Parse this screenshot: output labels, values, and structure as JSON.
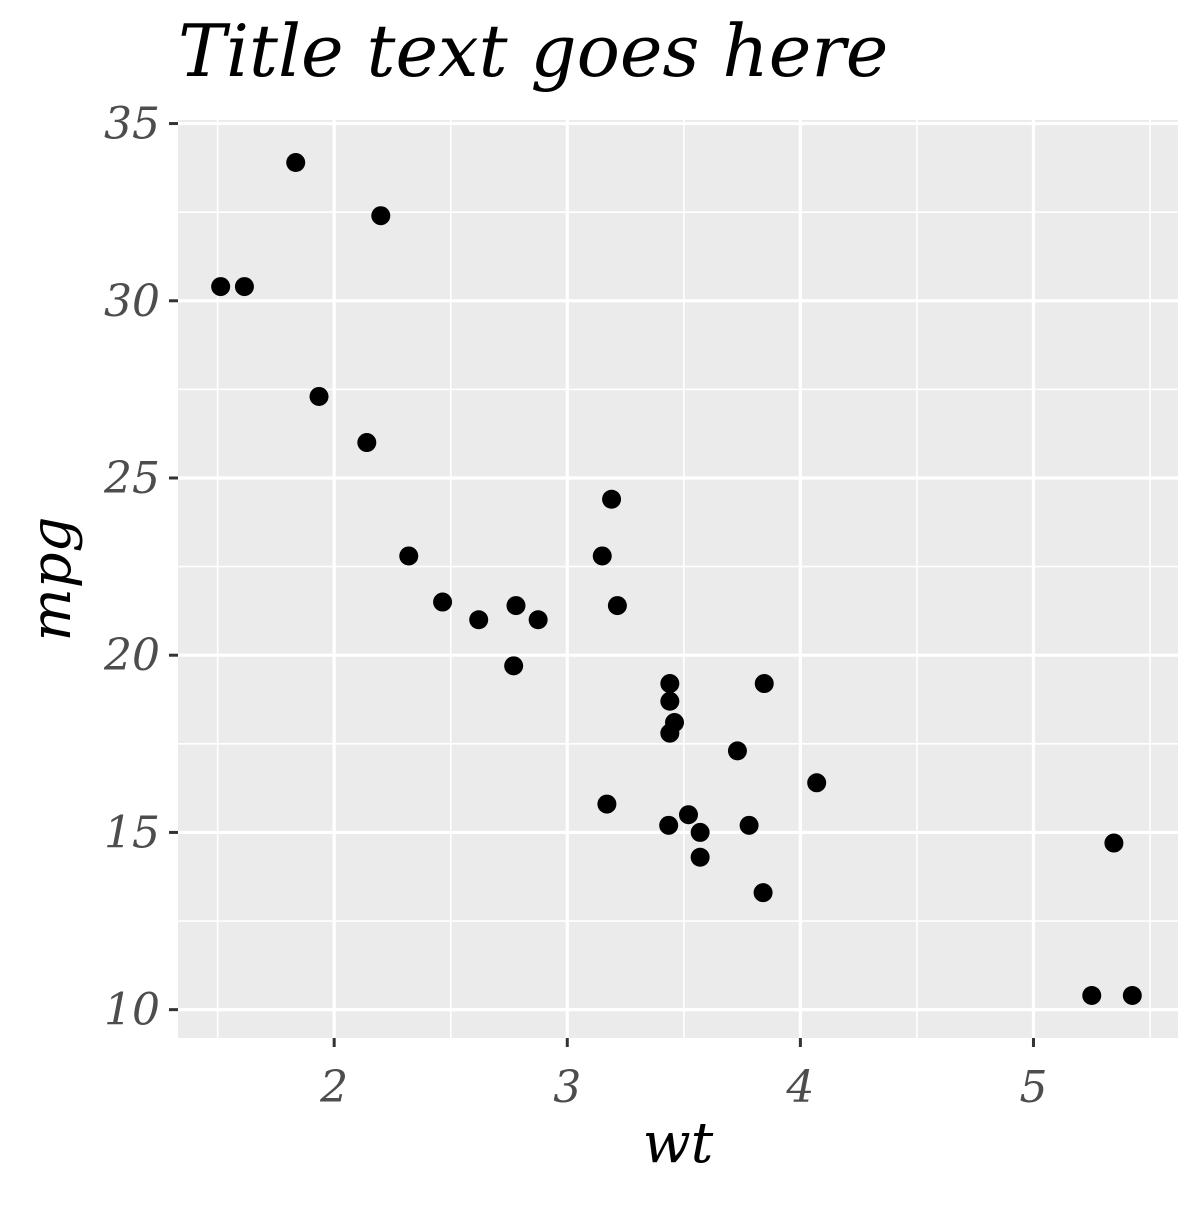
{
  "chart_data": {
    "type": "scatter",
    "title": "Title text goes here",
    "xlabel": "wt",
    "ylabel": "mpg",
    "xlim": [
      1.33,
      5.62
    ],
    "ylim": [
      9.2,
      35.1
    ],
    "xticks": [
      2,
      3,
      4,
      5
    ],
    "xtick_labels": [
      "2",
      "3",
      "4",
      "5"
    ],
    "yticks": [
      10,
      15,
      20,
      25,
      30,
      35
    ],
    "ytick_labels": [
      "10",
      "15",
      "20",
      "25",
      "30",
      "35"
    ],
    "x_minor": [
      1.5,
      2.5,
      3.5,
      4.5,
      5.5
    ],
    "y_minor": [
      12.5,
      17.5,
      22.5,
      27.5,
      32.5
    ],
    "grid": true,
    "legend": false,
    "colors": {
      "panel": "#EBEBEB",
      "grid": "#FFFFFF",
      "point": "#000000",
      "tick": "#333333",
      "tick_text": "#4D4D4D"
    },
    "points": [
      {
        "x": 2.62,
        "y": 21.0
      },
      {
        "x": 2.875,
        "y": 21.0
      },
      {
        "x": 2.32,
        "y": 22.8
      },
      {
        "x": 3.215,
        "y": 21.4
      },
      {
        "x": 3.44,
        "y": 18.7
      },
      {
        "x": 3.46,
        "y": 18.1
      },
      {
        "x": 3.57,
        "y": 14.3
      },
      {
        "x": 3.19,
        "y": 24.4
      },
      {
        "x": 3.15,
        "y": 22.8
      },
      {
        "x": 3.44,
        "y": 19.2
      },
      {
        "x": 3.44,
        "y": 17.8
      },
      {
        "x": 4.07,
        "y": 16.4
      },
      {
        "x": 3.73,
        "y": 17.3
      },
      {
        "x": 3.78,
        "y": 15.2
      },
      {
        "x": 5.25,
        "y": 10.4
      },
      {
        "x": 5.424,
        "y": 10.4
      },
      {
        "x": 5.345,
        "y": 14.7
      },
      {
        "x": 2.2,
        "y": 32.4
      },
      {
        "x": 1.615,
        "y": 30.4
      },
      {
        "x": 1.835,
        "y": 33.9
      },
      {
        "x": 2.465,
        "y": 21.5
      },
      {
        "x": 3.52,
        "y": 15.5
      },
      {
        "x": 3.435,
        "y": 15.2
      },
      {
        "x": 3.84,
        "y": 13.3
      },
      {
        "x": 3.845,
        "y": 19.2
      },
      {
        "x": 1.935,
        "y": 27.3
      },
      {
        "x": 2.14,
        "y": 26.0
      },
      {
        "x": 1.513,
        "y": 30.4
      },
      {
        "x": 3.17,
        "y": 15.8
      },
      {
        "x": 2.77,
        "y": 19.7
      },
      {
        "x": 3.57,
        "y": 15.0
      },
      {
        "x": 2.78,
        "y": 21.4
      }
    ]
  }
}
